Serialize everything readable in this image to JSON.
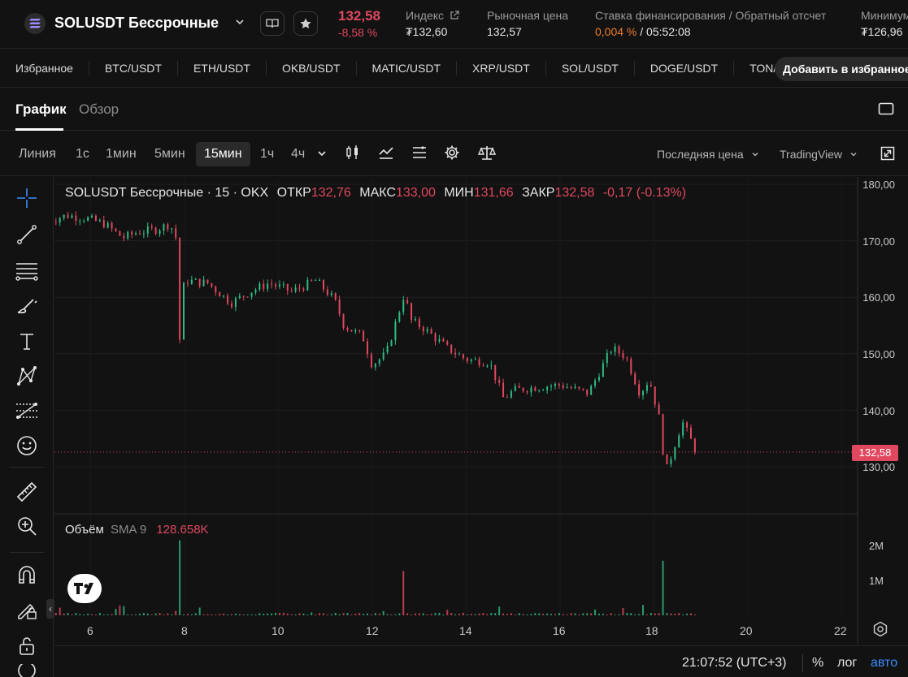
{
  "header": {
    "pair": "SOLUSDT Бессрочные",
    "price": "132,58",
    "change": "-8,58 %",
    "stats": [
      {
        "label": "Индекс",
        "value": "₮132,60"
      },
      {
        "label": "Рыночная цена",
        "value": "132,57"
      },
      {
        "label": "Ставка финансирования / Обратный отсчет",
        "value_accent": "0,004 %",
        "value_rest": " / 05:52:08"
      },
      {
        "label": "Минимум",
        "value": "₮126,96"
      }
    ]
  },
  "favorites": {
    "label": "Избранное",
    "items": [
      "BTC/USDT",
      "ETH/USDT",
      "OKB/USDT",
      "MATIC/USDT",
      "XRP/USDT",
      "SOL/USDT",
      "DOGE/USDT",
      "TON/USDT"
    ],
    "add_label": "Добавить в избранное"
  },
  "tabs": {
    "chart": "График",
    "overview": "Обзор"
  },
  "toolbar": {
    "timeframes": [
      "Линия",
      "1с",
      "1мин",
      "5мин",
      "15мин",
      "1ч",
      "4ч"
    ],
    "active_timeframe": "15мин",
    "price_type": "Последняя цена",
    "chart_engine": "TradingView"
  },
  "legend": {
    "title": "SOLUSDT Бессрочные · 15 · OKX",
    "open_label": "ОТКР",
    "open": "132,76",
    "high_label": "МАКС",
    "high": "133,00",
    "low_label": "МИН",
    "low": "131,66",
    "close_label": "ЗАКР",
    "close": "132,58",
    "change": "-0,17 (-0.13%)"
  },
  "volume_legend": {
    "label": "Объём",
    "sma": "SMA 9",
    "value": "128.658K"
  },
  "price_axis": [
    "180,00",
    "170,00",
    "160,00",
    "150,00",
    "140,00",
    "130,00"
  ],
  "volume_axis": [
    "2M",
    "1M"
  ],
  "time_axis": [
    "6",
    "8",
    "10",
    "12",
    "14",
    "16",
    "18",
    "20",
    "22"
  ],
  "last_price_tag": "132,58",
  "status": {
    "clock": "21:07:52 (UTC+3)",
    "percent": "%",
    "log": "лог",
    "auto": "авто"
  },
  "colors": {
    "down": "#e0485f",
    "up": "#2ebd85",
    "accent": "#f07b2c",
    "link": "#3b8cff"
  },
  "chart_data": {
    "type": "line",
    "title": "SOLUSDT Бессрочные · 15 · OKX",
    "x_unit": "day of month",
    "ylim": [
      125,
      181
    ],
    "x": [
      5.1,
      5.5,
      5.9,
      6.3,
      6.7,
      7.0,
      7.4,
      7.7,
      7.85,
      7.9,
      8.0,
      8.5,
      9.0,
      9.4,
      9.8,
      10.3,
      10.8,
      11.2,
      11.4,
      11.8,
      12.0,
      12.3,
      12.7,
      12.8,
      13.1,
      13.6,
      14.0,
      14.5,
      14.8,
      15.0,
      15.4,
      16.0,
      16.6,
      17.1,
      17.4,
      17.7,
      17.9,
      18.1,
      18.25,
      18.6,
      18.9
    ],
    "y": [
      173.5,
      174.5,
      174.0,
      173.0,
      170.5,
      171.5,
      172.0,
      173.0,
      170.0,
      152.0,
      163.0,
      162.5,
      159.0,
      161.0,
      162.5,
      161.0,
      163.0,
      159.5,
      155.0,
      153.0,
      148.0,
      150.0,
      161.0,
      156.0,
      154.5,
      151.0,
      149.0,
      148.5,
      142.0,
      143.5,
      144.0,
      144.5,
      143.0,
      151.0,
      149.5,
      143.0,
      145.5,
      139.0,
      129.0,
      138.0,
      132.6
    ],
    "volume_x": [
      7.9,
      12.65,
      18.2
    ],
    "volume_y": [
      2200000,
      1300000,
      1600000
    ]
  }
}
